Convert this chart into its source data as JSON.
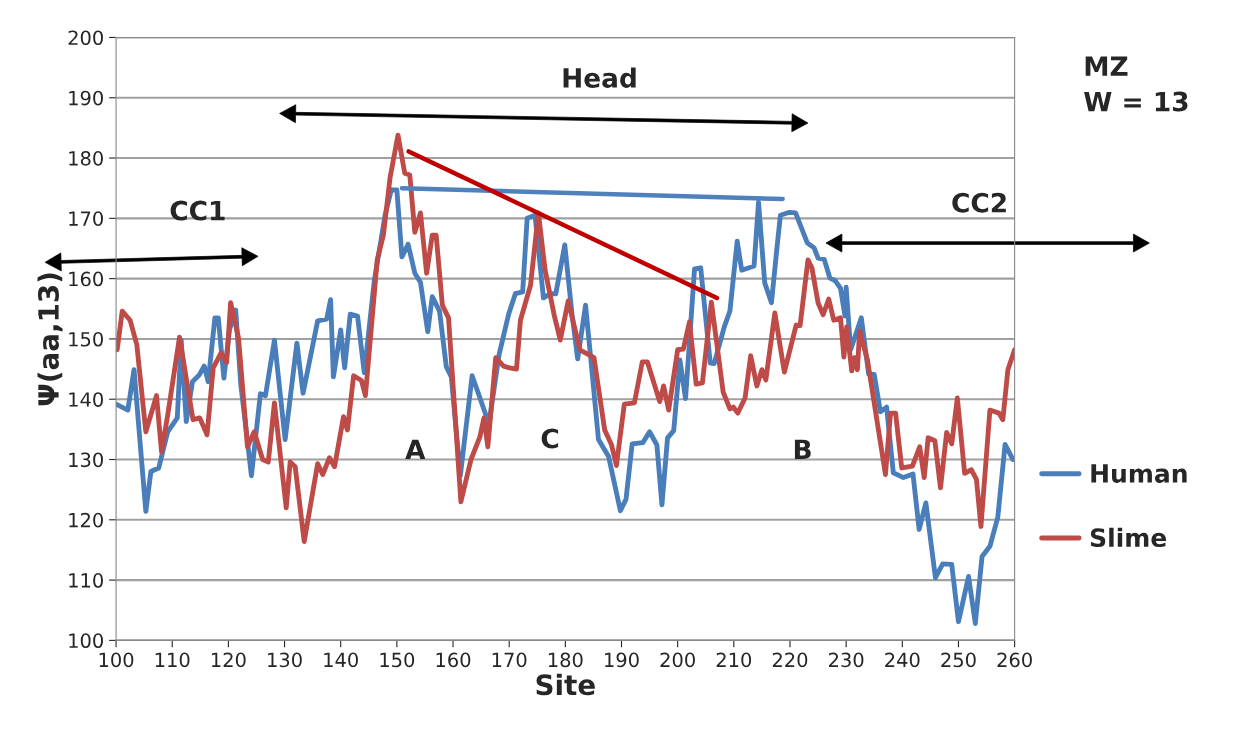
{
  "chart_data": {
    "type": "line",
    "xlabel": "Site",
    "ylabel": "Ψ(aa,13)",
    "xlim": [
      100,
      260
    ],
    "xticks": [
      100,
      110,
      120,
      130,
      140,
      150,
      160,
      170,
      180,
      190,
      200,
      210,
      220,
      230,
      240,
      250,
      260
    ],
    "ylim": [
      100,
      200
    ],
    "yticks": [
      100,
      110,
      120,
      130,
      140,
      150,
      160,
      170,
      180,
      190,
      200
    ],
    "grid": "y",
    "legend": "right",
    "marker": "none",
    "line_style": "solid",
    "series": [
      {
        "name": "Human",
        "color": "#4a7ebb",
        "x": [
          100,
          102.1,
          103.2,
          105.3,
          106.2,
          107.6,
          109.2,
          110.9,
          111.6,
          112.5,
          113.6,
          114.8,
          115.7,
          116.4,
          117.6,
          118.2,
          119.2,
          120.2,
          121.3,
          122.2,
          123.2,
          124.1,
          125.7,
          126.6,
          128.2,
          130.1,
          132.2,
          133.3,
          135.9,
          137.5,
          138.2,
          138.7,
          140,
          140.7,
          141.7,
          143,
          144.2,
          146,
          147.9,
          149,
          150,
          150.9,
          152,
          153.2,
          154.2,
          155.5,
          156.3,
          157.6,
          158.8,
          159.7,
          161.3,
          163.4,
          164.8,
          166.4,
          168.2,
          169.9,
          171.1,
          172.4,
          173.2,
          174.6,
          176.1,
          177.3,
          178.3,
          179.9,
          181.2,
          182.2,
          183.6,
          184.5,
          185.9,
          187.7,
          189.8,
          190.8,
          191.9,
          193.8,
          195,
          196.3,
          197.2,
          198.2,
          199.3,
          200.4,
          201.4,
          203,
          204.1,
          205.8,
          206.5,
          208.3,
          209.3,
          210.6,
          211.4,
          212.7,
          213.6,
          214.4,
          215.5,
          216.7,
          217.8,
          218.3,
          219.9,
          221,
          222,
          223.1,
          224.3,
          225,
          226.1,
          227.1,
          228,
          229,
          229.8,
          230,
          230.8,
          232.7,
          234,
          235,
          236.1,
          237.2,
          238.4,
          240.2,
          241.9,
          243,
          244.2,
          245.9,
          247.2,
          248.8,
          250,
          251.8,
          253,
          254.2,
          255.6,
          257,
          258.3,
          259.7
        ],
        "values": [
          139.2,
          138.2,
          144.9,
          121.4,
          128,
          128.6,
          134.6,
          136.9,
          149.8,
          136.3,
          142.9,
          144,
          145.5,
          142.9,
          153.5,
          153.5,
          143.5,
          151.5,
          154.8,
          142.5,
          134.6,
          127.3,
          140.9,
          140.6,
          149.8,
          133.3,
          149.3,
          141,
          153,
          153.3,
          156.5,
          143.7,
          151.5,
          145.2,
          154.1,
          153.8,
          144.4,
          159.8,
          170.5,
          174.7,
          174.7,
          163.6,
          165.7,
          160.9,
          159.4,
          151.2,
          157,
          154.6,
          145.4,
          143.7,
          127.3,
          143.9,
          140.2,
          135.9,
          147.4,
          154.1,
          157.5,
          157.8,
          170,
          170.5,
          156.8,
          157.5,
          157.5,
          165.6,
          154,
          146.7,
          155.6,
          147,
          133.3,
          130.5,
          121.5,
          123.4,
          132.6,
          132.8,
          134.6,
          132.4,
          122.5,
          133.6,
          134.8,
          146.5,
          140.1,
          161.6,
          161.8,
          146,
          145.9,
          152,
          154.6,
          166.2,
          161.4,
          161.8,
          162.1,
          172.7,
          159.3,
          156,
          166.2,
          170.5,
          171,
          170.9,
          168.5,
          165.9,
          165.1,
          163.4,
          163.2,
          160.1,
          159.7,
          158.4,
          153.8,
          158.6,
          148.2,
          153.5,
          144.2,
          144.1,
          137.9,
          138.7,
          127.8,
          127,
          127.6,
          118.4,
          122.8,
          110.4,
          112.7,
          112.6,
          103.1,
          110.6,
          102.8,
          113.9,
          115.6,
          120.4,
          132.5,
          130
        ]
      },
      {
        "name": "Slime",
        "color": "#be4b48",
        "x": [
          100.2,
          101.1,
          102.5,
          103.7,
          105.3,
          107.2,
          108.1,
          109.2,
          111.3,
          113.7,
          114.9,
          116.2,
          117.3,
          118.7,
          119.7,
          120.4,
          121.8,
          123.4,
          124.6,
          126.1,
          127.1,
          128.2,
          130.3,
          131,
          131.9,
          133.5,
          135.9,
          136.8,
          138,
          138.9,
          140.5,
          141.2,
          142.3,
          143.7,
          144.4,
          146.5,
          147.6,
          148.8,
          150.2,
          151.4,
          152.3,
          153.2,
          154.2,
          155.3,
          156.3,
          157,
          158.1,
          159.2,
          161.4,
          163.2,
          164.8,
          165.5,
          166.2,
          167.6,
          169,
          170.1,
          171.3,
          172,
          173.8,
          175.2,
          176.4,
          178,
          179.1,
          180.5,
          182.6,
          185.1,
          187,
          188.2,
          189.1,
          190.5,
          192.3,
          193.7,
          194.6,
          196.8,
          197.5,
          198.4,
          200,
          201,
          202.1,
          203.3,
          204.4,
          206,
          208.1,
          209.3,
          209.9,
          210.7,
          212,
          213,
          214.1,
          215,
          215.7,
          217.3,
          219,
          221.1,
          221.8,
          223.2,
          223.9,
          225,
          225.9,
          226.9,
          227.8,
          229,
          229.6,
          230.1,
          231,
          231.5,
          232,
          232.4,
          233.8,
          237,
          237.9,
          238.8,
          239.9,
          241.8,
          243.1,
          243.9,
          244.6,
          245.8,
          246.8,
          247.9,
          248.8,
          249.8,
          251.1,
          252.3,
          253.2,
          254,
          255.6,
          257.2,
          257.9,
          258.8,
          260
        ],
        "values": [
          148.2,
          154.6,
          153.1,
          149,
          134.6,
          140.6,
          131.3,
          137.4,
          150.3,
          136.6,
          136.9,
          134.1,
          145.2,
          147.7,
          146.1,
          156,
          150.2,
          132.1,
          134.6,
          130,
          129.6,
          139.4,
          122,
          129.6,
          128.8,
          116.4,
          129.3,
          127.5,
          130.3,
          128.8,
          137.1,
          134.9,
          143.9,
          143.1,
          140.6,
          163.1,
          167.2,
          176.8,
          183.8,
          177.5,
          177.2,
          167.7,
          170.9,
          160.9,
          167.2,
          167.2,
          155.6,
          153.5,
          123,
          130,
          133.8,
          136.9,
          132.1,
          146.9,
          145.5,
          145.2,
          145,
          153.1,
          158.9,
          170.9,
          161.4,
          154,
          149.8,
          156.3,
          148.2,
          146.9,
          134.9,
          132.5,
          129,
          139.2,
          139.4,
          146.2,
          146.2,
          139.6,
          142.2,
          138.2,
          148.2,
          148.3,
          152.8,
          142.5,
          142.7,
          156.1,
          141.2,
          138.4,
          138.7,
          137.7,
          140.2,
          147.2,
          142.2,
          144.9,
          143.2,
          154.3,
          144.5,
          152.3,
          152.2,
          163.1,
          161.8,
          156,
          154,
          156.6,
          153.1,
          153.5,
          147,
          152,
          144.7,
          146.9,
          144.9,
          151.3,
          146.5,
          127.5,
          137.7,
          137.7,
          128.6,
          128.9,
          132.1,
          127,
          133.6,
          133.1,
          125.3,
          134.5,
          132.6,
          140.2,
          127.7,
          128.3,
          126.7,
          118.9,
          138.2,
          137.7,
          136.6,
          144.9,
          148.2
        ]
      },
      {
        "type": "line",
        "color": "#4f81bd",
        "x": [
          150.9,
          218.7
        ],
        "values": [
          175,
          173.2
        ]
      },
      {
        "type": "line",
        "color": "#c00000",
        "x": [
          152.1,
          207
        ],
        "values": [
          181.1,
          156.8
        ]
      }
    ],
    "annotations": [
      "Head",
      "CC1",
      "CC2",
      "A",
      "C",
      "B",
      "MZ\nW = 13"
    ]
  }
}
